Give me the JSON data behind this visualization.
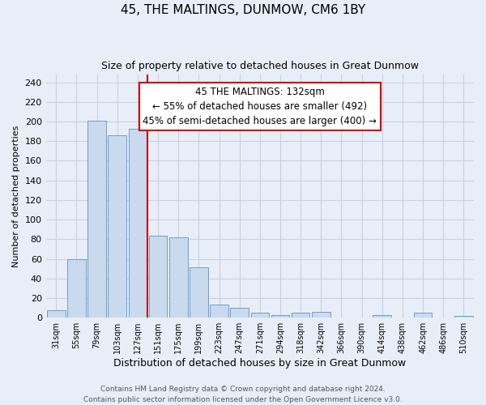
{
  "title": "45, THE MALTINGS, DUNMOW, CM6 1BY",
  "subtitle": "Size of property relative to detached houses in Great Dunmow",
  "xlabel": "Distribution of detached houses by size in Great Dunmow",
  "ylabel": "Number of detached properties",
  "bar_labels": [
    "31sqm",
    "55sqm",
    "79sqm",
    "103sqm",
    "127sqm",
    "151sqm",
    "175sqm",
    "199sqm",
    "223sqm",
    "247sqm",
    "271sqm",
    "294sqm",
    "318sqm",
    "342sqm",
    "366sqm",
    "390sqm",
    "414sqm",
    "438sqm",
    "462sqm",
    "486sqm",
    "510sqm"
  ],
  "bar_values": [
    8,
    60,
    201,
    186,
    193,
    84,
    82,
    51,
    13,
    10,
    5,
    3,
    5,
    6,
    0,
    0,
    3,
    0,
    5,
    0,
    2
  ],
  "bar_color": "#c9d9ee",
  "bar_edge_color": "#6a9fcb",
  "vline_x_bar_index": 4,
  "vline_color": "#cc0000",
  "ylim": [
    0,
    248
  ],
  "yticks": [
    0,
    20,
    40,
    60,
    80,
    100,
    120,
    140,
    160,
    180,
    200,
    220,
    240
  ],
  "annotation_title": "45 THE MALTINGS: 132sqm",
  "annotation_line1": "← 55% of detached houses are smaller (492)",
  "annotation_line2": "45% of semi-detached houses are larger (400) →",
  "annotation_box_color": "white",
  "annotation_box_edgecolor": "#cc0000",
  "footer_line1": "Contains HM Land Registry data © Crown copyright and database right 2024.",
  "footer_line2": "Contains public sector information licensed under the Open Government Licence v3.0.",
  "background_color": "#e8eef8",
  "grid_color": "#c8d0dc",
  "title_fontsize": 11,
  "subtitle_fontsize": 9,
  "ylabel_fontsize": 8,
  "xlabel_fontsize": 9,
  "tick_fontsize": 8,
  "xtick_fontsize": 7,
  "ann_fontsize": 8.5,
  "footer_fontsize": 6.5
}
